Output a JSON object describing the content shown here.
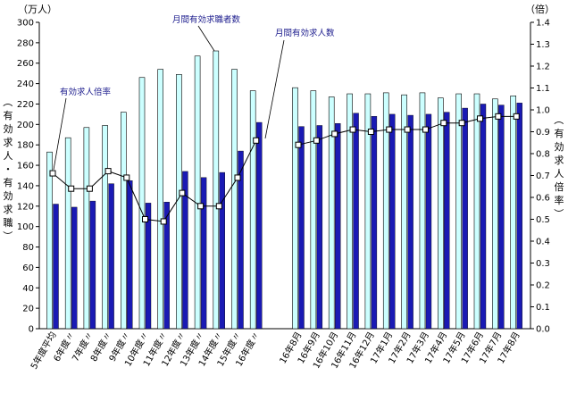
{
  "chart_data": {
    "type": "bar",
    "categories": [
      "5年度平均",
      "6年度〃",
      "7年度〃",
      "8年度〃",
      "9年度〃",
      "10年度〃",
      "11年度〃",
      "12年度〃",
      "13年度〃",
      "14年度〃",
      "15年度〃",
      "16年度〃",
      "16年8月",
      "16年9月",
      "16年10月",
      "16年11月",
      "16年12月",
      "17年1月",
      "17年2月",
      "17年3月",
      "17年4月",
      "17年5月",
      "17年6月",
      "17年7月",
      "17年8月"
    ],
    "series": [
      {
        "name": "月間有効求職者数",
        "axis": "left",
        "kind": "bar",
        "color": "#ccffff",
        "values": [
          173,
          187,
          197,
          199,
          212,
          246,
          254,
          249,
          267,
          272,
          254,
          233,
          236,
          233,
          227,
          230,
          230,
          231,
          229,
          231,
          226,
          230,
          230,
          225,
          228
        ]
      },
      {
        "name": "月間有効求人数",
        "axis": "left",
        "kind": "bar",
        "color": "#1a1ab4",
        "values": [
          122,
          119,
          125,
          142,
          145,
          123,
          124,
          154,
          148,
          153,
          174,
          202,
          198,
          199,
          201,
          211,
          208,
          210,
          209,
          210,
          212,
          216,
          220,
          219,
          221
        ]
      },
      {
        "name": "有効求人倍率",
        "axis": "right",
        "kind": "line",
        "color": "#000000",
        "values": [
          0.71,
          0.64,
          0.64,
          0.72,
          0.69,
          0.5,
          0.49,
          0.62,
          0.56,
          0.56,
          0.69,
          0.86,
          0.84,
          0.86,
          0.89,
          0.91,
          0.9,
          0.91,
          0.91,
          0.91,
          0.94,
          0.94,
          0.96,
          0.97,
          0.97
        ]
      }
    ],
    "left_axis": {
      "unit": "（万人）",
      "label": "（有効求人・有効求職）",
      "ylim": [
        0,
        300
      ],
      "ticks": [
        0,
        20,
        40,
        60,
        80,
        100,
        120,
        140,
        160,
        180,
        200,
        220,
        240,
        260,
        280,
        300
      ]
    },
    "right_axis": {
      "unit": "（倍）",
      "label": "（有効求人倍率）",
      "ylim": [
        0.0,
        1.4
      ],
      "ticks": [
        "0.0",
        "0.1",
        "0.2",
        "0.3",
        "0.4",
        "0.5",
        "0.6",
        "0.7",
        "0.8",
        "0.9",
        "1.0",
        "1.1",
        "1.2",
        "1.3",
        "1.4"
      ]
    },
    "annotations": [
      {
        "text": "月間有効求職者数",
        "target_series": 0
      },
      {
        "text": "月間有効求人数",
        "target_series": 1
      },
      {
        "text": "有効求人倍率",
        "target_series": 2
      }
    ],
    "grid": false
  }
}
